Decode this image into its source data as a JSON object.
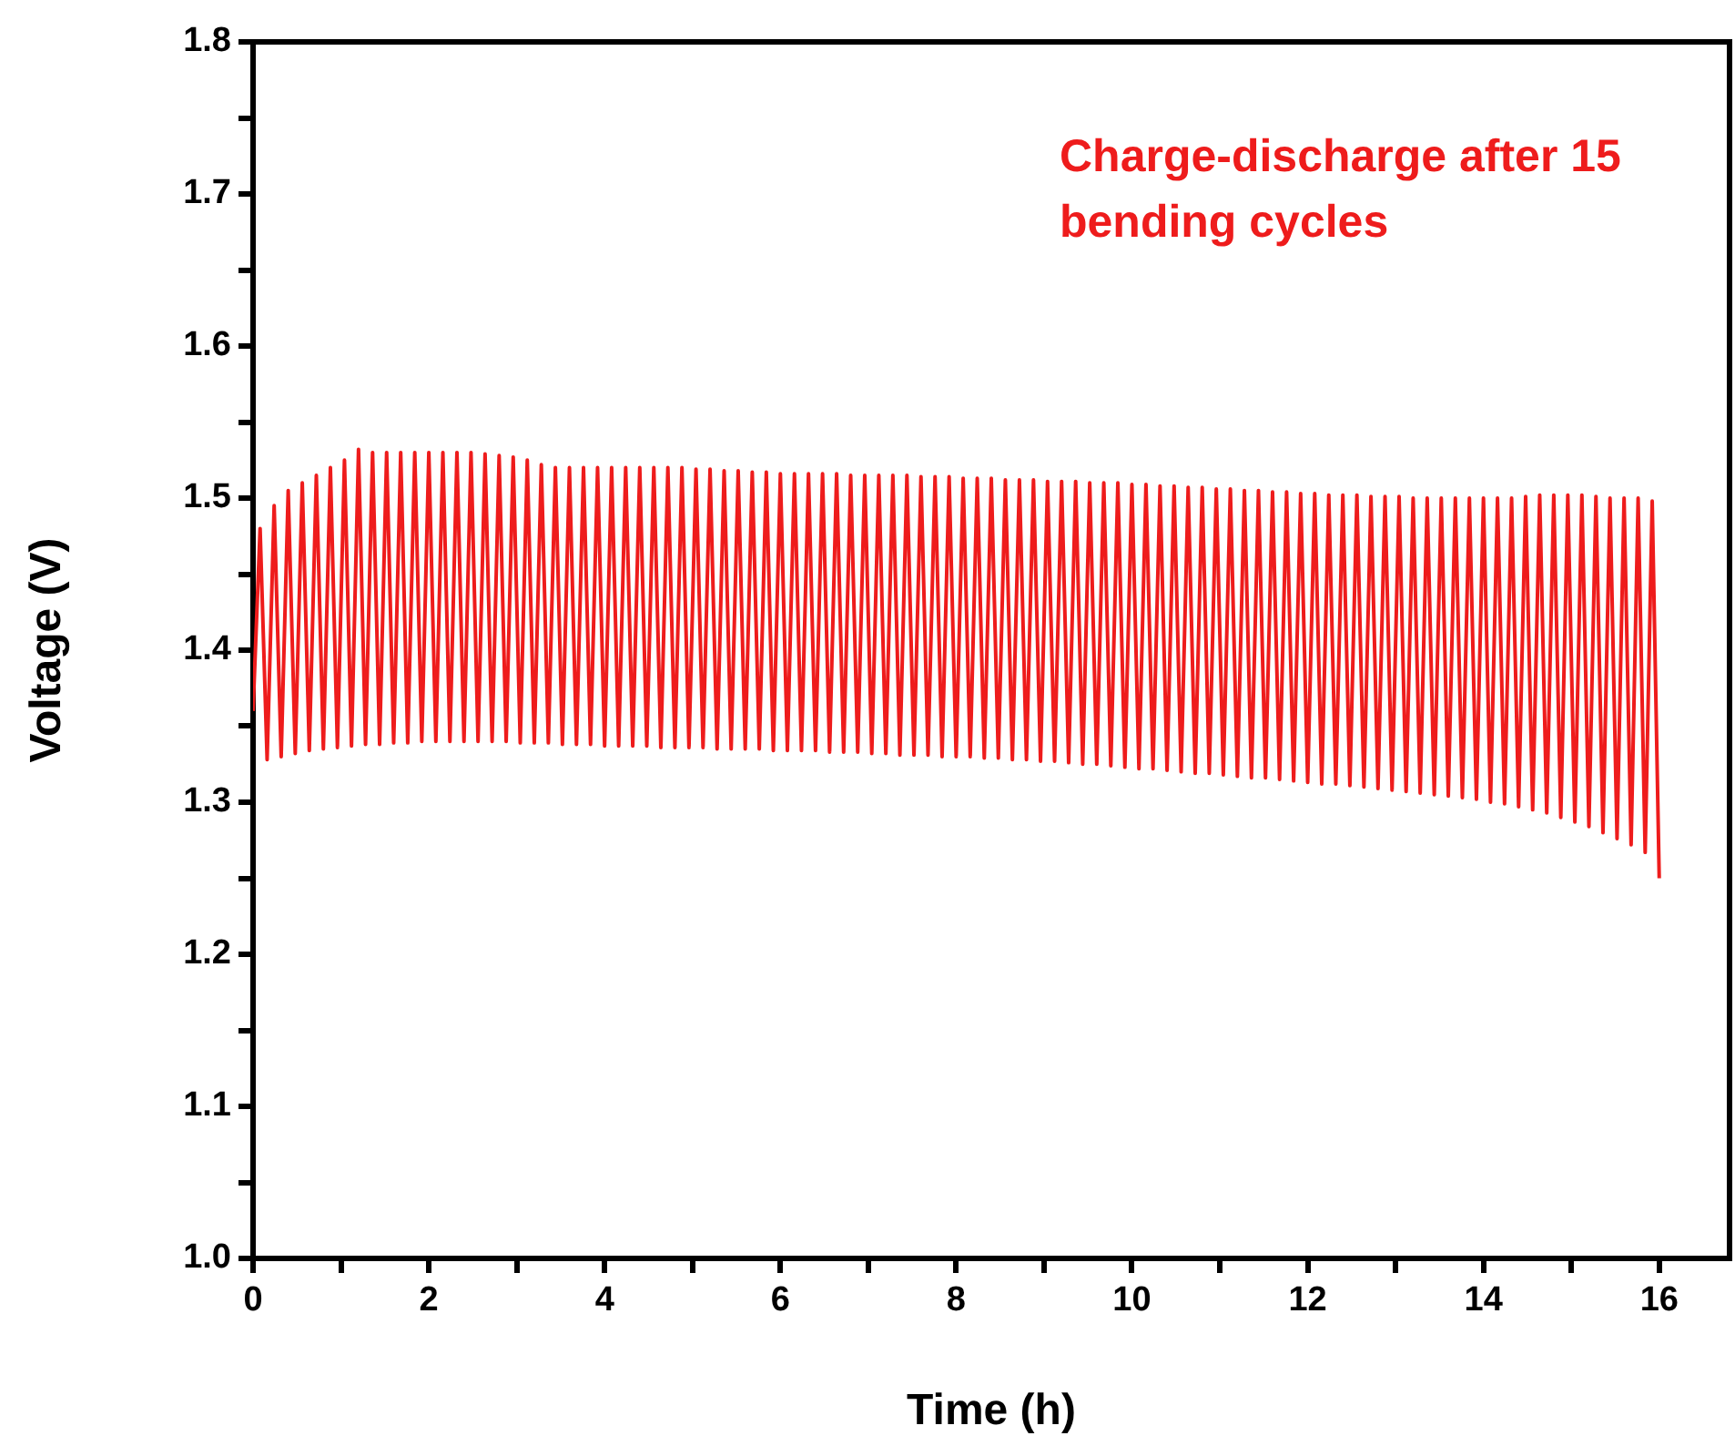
{
  "chart_data": {
    "type": "line",
    "xlabel": "Time (h)",
    "ylabel": "Voltage (V)",
    "annotations": [
      "Charge-discharge after 15 bending cycles"
    ],
    "xlim": [
      0,
      16.8
    ],
    "ylim": [
      1.0,
      1.8
    ],
    "xticks": [
      0,
      {
        "value": 1,
        "label": null
      },
      2,
      {
        "value": 3,
        "label": null
      },
      4,
      {
        "value": 5,
        "label": null
      },
      6,
      {
        "value": 7,
        "label": null
      },
      8,
      {
        "value": 9,
        "label": null
      },
      10,
      {
        "value": 11,
        "label": null
      },
      12,
      {
        "value": 13,
        "label": null
      },
      14,
      {
        "value": 15,
        "label": null
      },
      16
    ],
    "yticks": [
      {
        "value": 1.0,
        "label": "1.0"
      },
      {
        "value": 1.05,
        "label": null
      },
      1.1,
      {
        "value": 1.15,
        "label": null
      },
      1.2,
      {
        "value": 1.25,
        "label": null
      },
      1.3,
      {
        "value": 1.35,
        "label": null
      },
      1.4,
      {
        "value": 1.45,
        "label": null
      },
      1.5,
      {
        "value": 1.55,
        "label": null
      },
      1.6,
      {
        "value": 1.65,
        "label": null
      },
      1.7,
      {
        "value": 1.75,
        "label": null
      },
      1.8
    ],
    "grid": false,
    "legend": false,
    "marker": "none",
    "line_style": "solid",
    "x": [
      0,
      0.08,
      0.16,
      0.24,
      0.32,
      0.4,
      0.48,
      0.56,
      0.64,
      0.72,
      0.8,
      0.88,
      0.96,
      1.04,
      1.12,
      1.2,
      1.28,
      1.36,
      1.44,
      1.52,
      1.6,
      1.68,
      1.76,
      1.84,
      1.92,
      2,
      2.08,
      2.16,
      2.24,
      2.32,
      2.4,
      2.48,
      2.56,
      2.64,
      2.72,
      2.8,
      2.88,
      2.96,
      3.04,
      3.12,
      3.2,
      3.28,
      3.36,
      3.44,
      3.52,
      3.6,
      3.68,
      3.76,
      3.84,
      3.92,
      4,
      4.08,
      4.16,
      4.24,
      4.32,
      4.4,
      4.48,
      4.56,
      4.64,
      4.72,
      4.8,
      4.88,
      4.96,
      5.04,
      5.12,
      5.2,
      5.28,
      5.36,
      5.44,
      5.52,
      5.6,
      5.68,
      5.76,
      5.84,
      5.92,
      6,
      6.08,
      6.16,
      6.24,
      6.32,
      6.4,
      6.48,
      6.56,
      6.64,
      6.72,
      6.8,
      6.88,
      6.96,
      7.04,
      7.12,
      7.2,
      7.28,
      7.36,
      7.44,
      7.52,
      7.6,
      7.68,
      7.76,
      7.84,
      7.92,
      8,
      8.08,
      8.16,
      8.24,
      8.32,
      8.4,
      8.48,
      8.56,
      8.64,
      8.72,
      8.8,
      8.88,
      8.96,
      9.04,
      9.12,
      9.2,
      9.28,
      9.36,
      9.44,
      9.52,
      9.6,
      9.68,
      9.76,
      9.84,
      9.92,
      10,
      10.08,
      10.16,
      10.24,
      10.32,
      10.4,
      10.48,
      10.56,
      10.64,
      10.72,
      10.8,
      10.88,
      10.96,
      11.04,
      11.12,
      11.2,
      11.28,
      11.36,
      11.44,
      11.52,
      11.6,
      11.68,
      11.76,
      11.84,
      11.92,
      12,
      12.08,
      12.16,
      12.24,
      12.32,
      12.4,
      12.48,
      12.56,
      12.64,
      12.72,
      12.8,
      12.88,
      12.96,
      13.04,
      13.12,
      13.2,
      13.28,
      13.36,
      13.44,
      13.52,
      13.6,
      13.68,
      13.76,
      13.84,
      13.92,
      14,
      14.08,
      14.16,
      14.24,
      14.32,
      14.4,
      14.48,
      14.56,
      14.64,
      14.72,
      14.8,
      14.88,
      14.96,
      15.04,
      15.12,
      15.2,
      15.28,
      15.36,
      15.44,
      15.52,
      15.6,
      15.68,
      15.76,
      15.84,
      15.92,
      16
    ],
    "series": [
      {
        "color": "#ee1c1c",
        "values": [
          1.36,
          1.48,
          1.328,
          1.495,
          1.33,
          1.505,
          1.332,
          1.51,
          1.334,
          1.515,
          1.335,
          1.52,
          1.336,
          1.525,
          1.337,
          1.532,
          1.338,
          1.53,
          1.338,
          1.53,
          1.339,
          1.53,
          1.339,
          1.53,
          1.34,
          1.53,
          1.34,
          1.53,
          1.34,
          1.53,
          1.34,
          1.53,
          1.34,
          1.529,
          1.34,
          1.528,
          1.34,
          1.527,
          1.339,
          1.525,
          1.339,
          1.522,
          1.339,
          1.52,
          1.338,
          1.52,
          1.338,
          1.52,
          1.338,
          1.52,
          1.337,
          1.52,
          1.337,
          1.52,
          1.337,
          1.52,
          1.337,
          1.52,
          1.336,
          1.52,
          1.336,
          1.52,
          1.336,
          1.519,
          1.336,
          1.519,
          1.335,
          1.518,
          1.335,
          1.518,
          1.335,
          1.517,
          1.335,
          1.517,
          1.334,
          1.516,
          1.334,
          1.516,
          1.334,
          1.516,
          1.334,
          1.516,
          1.333,
          1.516,
          1.333,
          1.515,
          1.333,
          1.515,
          1.332,
          1.515,
          1.332,
          1.515,
          1.331,
          1.515,
          1.331,
          1.514,
          1.331,
          1.514,
          1.33,
          1.514,
          1.33,
          1.513,
          1.33,
          1.513,
          1.329,
          1.513,
          1.329,
          1.512,
          1.328,
          1.512,
          1.328,
          1.512,
          1.327,
          1.511,
          1.327,
          1.511,
          1.326,
          1.511,
          1.325,
          1.51,
          1.325,
          1.51,
          1.324,
          1.51,
          1.323,
          1.509,
          1.322,
          1.509,
          1.322,
          1.508,
          1.321,
          1.508,
          1.32,
          1.507,
          1.319,
          1.507,
          1.319,
          1.506,
          1.318,
          1.506,
          1.317,
          1.505,
          1.316,
          1.505,
          1.316,
          1.504,
          1.315,
          1.504,
          1.314,
          1.503,
          1.313,
          1.503,
          1.312,
          1.502,
          1.312,
          1.502,
          1.311,
          1.502,
          1.31,
          1.501,
          1.309,
          1.501,
          1.308,
          1.501,
          1.307,
          1.5,
          1.306,
          1.5,
          1.305,
          1.5,
          1.304,
          1.5,
          1.303,
          1.5,
          1.302,
          1.5,
          1.3,
          1.5,
          1.299,
          1.5,
          1.297,
          1.501,
          1.295,
          1.502,
          1.293,
          1.502,
          1.29,
          1.502,
          1.287,
          1.502,
          1.284,
          1.501,
          1.28,
          1.5,
          1.276,
          1.5,
          1.272,
          1.5,
          1.267,
          1.498,
          1.25
        ]
      }
    ]
  }
}
